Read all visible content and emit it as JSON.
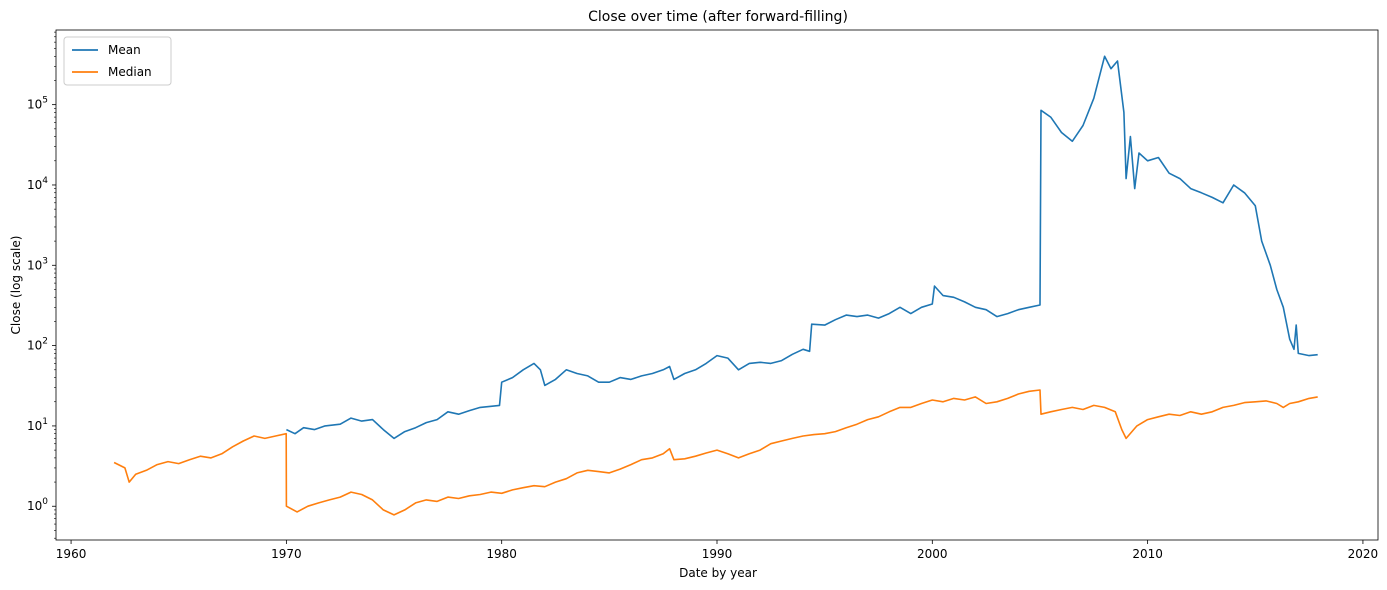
{
  "chart_data": {
    "type": "line",
    "title": "Close over time (after forward-filling)",
    "xlabel": "Date by year",
    "ylabel": "Close (log scale)",
    "y_scale": "log",
    "xlim": [
      1959.3,
      2020.7
    ],
    "ylim": [
      0.38,
      850000
    ],
    "x_ticks": [
      1960,
      1970,
      1980,
      1990,
      2000,
      2010,
      2020
    ],
    "y_ticks": [
      {
        "value": 1,
        "base": "10",
        "exp": "0"
      },
      {
        "value": 10,
        "base": "10",
        "exp": "1"
      },
      {
        "value": 100,
        "base": "10",
        "exp": "2"
      },
      {
        "value": 1000,
        "base": "10",
        "exp": "3"
      },
      {
        "value": 10000,
        "base": "10",
        "exp": "4"
      },
      {
        "value": 100000,
        "base": "10",
        "exp": "5"
      }
    ],
    "legend_position": "top-left",
    "grid": false,
    "series": [
      {
        "name": "Mean",
        "color": "#1f77b4",
        "points": [
          [
            1970.0,
            9.0
          ],
          [
            1970.4,
            8.0
          ],
          [
            1970.8,
            9.5
          ],
          [
            1971.3,
            9.0
          ],
          [
            1971.8,
            10.0
          ],
          [
            1972.5,
            10.5
          ],
          [
            1973.0,
            12.5
          ],
          [
            1973.5,
            11.5
          ],
          [
            1974.0,
            12.0
          ],
          [
            1974.5,
            9.0
          ],
          [
            1975.0,
            7.0
          ],
          [
            1975.5,
            8.5
          ],
          [
            1976.0,
            9.5
          ],
          [
            1976.5,
            11.0
          ],
          [
            1977.0,
            12.0
          ],
          [
            1977.5,
            15.0
          ],
          [
            1978.0,
            14.0
          ],
          [
            1978.5,
            15.5
          ],
          [
            1979.0,
            17.0
          ],
          [
            1979.9,
            18.0
          ],
          [
            1980.0,
            35.0
          ],
          [
            1980.5,
            40.0
          ],
          [
            1981.0,
            50.0
          ],
          [
            1981.5,
            60.0
          ],
          [
            1981.8,
            50.0
          ],
          [
            1982.0,
            32.0
          ],
          [
            1982.5,
            38.0
          ],
          [
            1983.0,
            50.0
          ],
          [
            1983.5,
            45.0
          ],
          [
            1984.0,
            42.0
          ],
          [
            1984.5,
            35.0
          ],
          [
            1985.0,
            35.0
          ],
          [
            1985.5,
            40.0
          ],
          [
            1986.0,
            38.0
          ],
          [
            1986.5,
            42.0
          ],
          [
            1987.0,
            45.0
          ],
          [
            1987.5,
            50.0
          ],
          [
            1987.8,
            55.0
          ],
          [
            1988.0,
            38.0
          ],
          [
            1988.5,
            45.0
          ],
          [
            1989.0,
            50.0
          ],
          [
            1989.5,
            60.0
          ],
          [
            1990.0,
            75.0
          ],
          [
            1990.5,
            70.0
          ],
          [
            1991.0,
            50.0
          ],
          [
            1991.5,
            60.0
          ],
          [
            1992.0,
            62.0
          ],
          [
            1992.5,
            60.0
          ],
          [
            1993.0,
            65.0
          ],
          [
            1993.5,
            78.0
          ],
          [
            1994.0,
            90.0
          ],
          [
            1994.3,
            85.0
          ],
          [
            1994.4,
            185.0
          ],
          [
            1995.0,
            180.0
          ],
          [
            1995.5,
            210.0
          ],
          [
            1996.0,
            240.0
          ],
          [
            1996.5,
            230.0
          ],
          [
            1997.0,
            240.0
          ],
          [
            1997.5,
            220.0
          ],
          [
            1998.0,
            250.0
          ],
          [
            1998.5,
            300.0
          ],
          [
            1999.0,
            250.0
          ],
          [
            1999.5,
            300.0
          ],
          [
            2000.0,
            330.0
          ],
          [
            2000.1,
            550.0
          ],
          [
            2000.5,
            420.0
          ],
          [
            2001.0,
            400.0
          ],
          [
            2001.5,
            350.0
          ],
          [
            2002.0,
            300.0
          ],
          [
            2002.5,
            280.0
          ],
          [
            2003.0,
            230.0
          ],
          [
            2003.5,
            250.0
          ],
          [
            2004.0,
            280.0
          ],
          [
            2004.5,
            300.0
          ],
          [
            2005.0,
            320.0
          ],
          [
            2005.05,
            85000.0
          ],
          [
            2005.5,
            70000.0
          ],
          [
            2006.0,
            45000.0
          ],
          [
            2006.5,
            35000.0
          ],
          [
            2007.0,
            55000.0
          ],
          [
            2007.5,
            120000.0
          ],
          [
            2008.0,
            400000.0
          ],
          [
            2008.3,
            280000.0
          ],
          [
            2008.6,
            350000.0
          ],
          [
            2008.9,
            80000.0
          ],
          [
            2009.0,
            12000.0
          ],
          [
            2009.2,
            40000.0
          ],
          [
            2009.4,
            9000.0
          ],
          [
            2009.6,
            25000.0
          ],
          [
            2010.0,
            20000.0
          ],
          [
            2010.5,
            22000.0
          ],
          [
            2011.0,
            14000.0
          ],
          [
            2011.5,
            12000.0
          ],
          [
            2012.0,
            9000.0
          ],
          [
            2012.5,
            8000.0
          ],
          [
            2013.0,
            7000.0
          ],
          [
            2013.5,
            6000.0
          ],
          [
            2014.0,
            10000.0
          ],
          [
            2014.5,
            8000.0
          ],
          [
            2015.0,
            5500.0
          ],
          [
            2015.3,
            2000.0
          ],
          [
            2015.7,
            1000.0
          ],
          [
            2016.0,
            500.0
          ],
          [
            2016.3,
            300.0
          ],
          [
            2016.6,
            120.0
          ],
          [
            2016.8,
            90.0
          ],
          [
            2016.9,
            180.0
          ],
          [
            2017.0,
            80.0
          ],
          [
            2017.5,
            75.0
          ],
          [
            2017.9,
            77.0
          ]
        ]
      },
      {
        "name": "Median",
        "color": "#ff7f0e",
        "points": [
          [
            1962.0,
            3.5
          ],
          [
            1962.5,
            3.0
          ],
          [
            1962.7,
            2.0
          ],
          [
            1963.0,
            2.5
          ],
          [
            1963.5,
            2.8
          ],
          [
            1964.0,
            3.3
          ],
          [
            1964.5,
            3.6
          ],
          [
            1965.0,
            3.4
          ],
          [
            1965.5,
            3.8
          ],
          [
            1966.0,
            4.2
          ],
          [
            1966.5,
            4.0
          ],
          [
            1967.0,
            4.5
          ],
          [
            1967.5,
            5.5
          ],
          [
            1968.0,
            6.5
          ],
          [
            1968.5,
            7.5
          ],
          [
            1969.0,
            7.0
          ],
          [
            1969.5,
            7.5
          ],
          [
            1969.99,
            8.0
          ],
          [
            1970.0,
            1.0
          ],
          [
            1970.5,
            0.85
          ],
          [
            1971.0,
            1.0
          ],
          [
            1971.5,
            1.1
          ],
          [
            1972.0,
            1.2
          ],
          [
            1972.5,
            1.3
          ],
          [
            1973.0,
            1.5
          ],
          [
            1973.5,
            1.4
          ],
          [
            1974.0,
            1.2
          ],
          [
            1974.5,
            0.9
          ],
          [
            1975.0,
            0.78
          ],
          [
            1975.5,
            0.9
          ],
          [
            1976.0,
            1.1
          ],
          [
            1976.5,
            1.2
          ],
          [
            1977.0,
            1.15
          ],
          [
            1977.5,
            1.3
          ],
          [
            1978.0,
            1.25
          ],
          [
            1978.5,
            1.35
          ],
          [
            1979.0,
            1.4
          ],
          [
            1979.5,
            1.5
          ],
          [
            1980.0,
            1.45
          ],
          [
            1980.5,
            1.6
          ],
          [
            1981.0,
            1.7
          ],
          [
            1981.5,
            1.8
          ],
          [
            1982.0,
            1.75
          ],
          [
            1982.5,
            2.0
          ],
          [
            1983.0,
            2.2
          ],
          [
            1983.5,
            2.6
          ],
          [
            1984.0,
            2.8
          ],
          [
            1984.5,
            2.7
          ],
          [
            1985.0,
            2.6
          ],
          [
            1985.5,
            2.9
          ],
          [
            1986.0,
            3.3
          ],
          [
            1986.5,
            3.8
          ],
          [
            1987.0,
            4.0
          ],
          [
            1987.5,
            4.5
          ],
          [
            1987.8,
            5.2
          ],
          [
            1988.0,
            3.8
          ],
          [
            1988.5,
            3.9
          ],
          [
            1989.0,
            4.2
          ],
          [
            1989.5,
            4.6
          ],
          [
            1990.0,
            5.0
          ],
          [
            1990.5,
            4.5
          ],
          [
            1991.0,
            4.0
          ],
          [
            1991.5,
            4.5
          ],
          [
            1992.0,
            5.0
          ],
          [
            1992.5,
            6.0
          ],
          [
            1993.0,
            6.5
          ],
          [
            1993.5,
            7.0
          ],
          [
            1994.0,
            7.5
          ],
          [
            1994.5,
            7.8
          ],
          [
            1995.0,
            8.0
          ],
          [
            1995.5,
            8.5
          ],
          [
            1996.0,
            9.5
          ],
          [
            1996.5,
            10.5
          ],
          [
            1997.0,
            12.0
          ],
          [
            1997.5,
            13.0
          ],
          [
            1998.0,
            15.0
          ],
          [
            1998.5,
            17.0
          ],
          [
            1999.0,
            17.0
          ],
          [
            1999.5,
            19.0
          ],
          [
            2000.0,
            21.0
          ],
          [
            2000.5,
            20.0
          ],
          [
            2001.0,
            22.0
          ],
          [
            2001.5,
            21.0
          ],
          [
            2002.0,
            23.0
          ],
          [
            2002.5,
            19.0
          ],
          [
            2003.0,
            20.0
          ],
          [
            2003.5,
            22.0
          ],
          [
            2004.0,
            25.0
          ],
          [
            2004.5,
            27.0
          ],
          [
            2005.0,
            28.0
          ],
          [
            2005.05,
            14.0
          ],
          [
            2005.5,
            15.0
          ],
          [
            2006.0,
            16.0
          ],
          [
            2006.5,
            17.0
          ],
          [
            2007.0,
            16.0
          ],
          [
            2007.5,
            18.0
          ],
          [
            2008.0,
            17.0
          ],
          [
            2008.5,
            15.0
          ],
          [
            2008.8,
            9.0
          ],
          [
            2009.0,
            7.0
          ],
          [
            2009.5,
            10.0
          ],
          [
            2010.0,
            12.0
          ],
          [
            2010.5,
            13.0
          ],
          [
            2011.0,
            14.0
          ],
          [
            2011.5,
            13.5
          ],
          [
            2012.0,
            15.0
          ],
          [
            2012.5,
            14.0
          ],
          [
            2013.0,
            15.0
          ],
          [
            2013.5,
            17.0
          ],
          [
            2014.0,
            18.0
          ],
          [
            2014.5,
            19.5
          ],
          [
            2015.0,
            20.0
          ],
          [
            2015.5,
            20.5
          ],
          [
            2016.0,
            19.0
          ],
          [
            2016.3,
            17.0
          ],
          [
            2016.6,
            19.0
          ],
          [
            2017.0,
            20.0
          ],
          [
            2017.5,
            22.0
          ],
          [
            2017.9,
            23.0
          ]
        ]
      }
    ]
  }
}
